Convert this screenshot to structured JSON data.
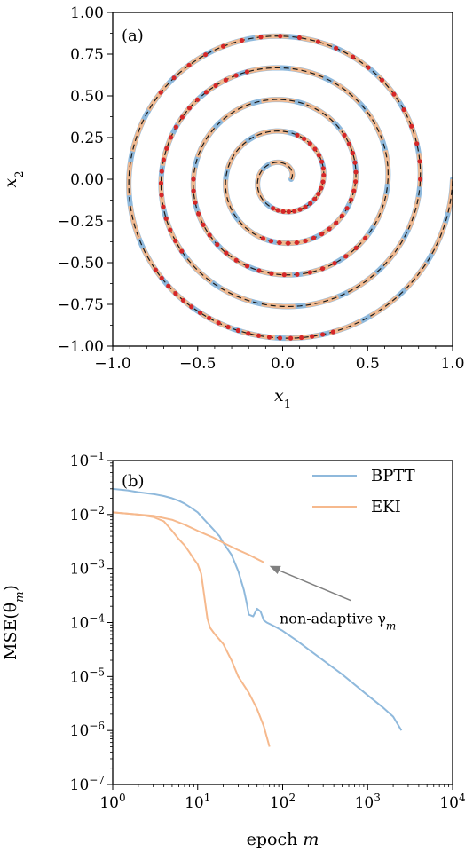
{
  "chart_data": [
    {
      "panel": "(a)",
      "type": "line",
      "xlabel": "x",
      "xlabel_sub": "1",
      "ylabel": "x",
      "ylabel_sub": "2",
      "xlim": [
        -1.0,
        1.0
      ],
      "ylim": [
        -1.0,
        1.0
      ],
      "xticks": [
        -1.0,
        -0.5,
        0.0,
        0.5,
        1.0
      ],
      "xtick_labels": [
        "−1.0",
        "−0.5",
        "0.0",
        "0.5",
        "1.0"
      ],
      "yticks": [
        1.0,
        0.75,
        0.5,
        0.25,
        0.0,
        -0.25,
        -0.5,
        -0.75,
        -1.0
      ],
      "ytick_labels": [
        "1.00",
        "0.75",
        "0.50",
        "0.25",
        "0.00",
        "−0.25",
        "−0.50",
        "−0.75",
        "−1.00"
      ],
      "grid": false,
      "spiral": {
        "turns": 5,
        "r_min": 0.05,
        "r_max": 1.0,
        "points": 700
      },
      "series": [
        {
          "style": "true trajectory",
          "color": "#8fb9dc"
        },
        {
          "style": "EKI fit",
          "color": "#f6b98d"
        },
        {
          "style": "BPTT fit (dashed)",
          "color": "#1a1a1a"
        },
        {
          "style": "observations",
          "color": "#d62728",
          "markers": 120
        }
      ],
      "colors": {
        "blue": "#8fb9dc",
        "orange": "#f6b98d",
        "black": "#1a1a1a",
        "red": "#d62728"
      }
    },
    {
      "panel": "(b)",
      "type": "line",
      "xlabel": "epoch",
      "xlabel_var": "m",
      "ylabel": "MSE(θ",
      "ylabel_sub": "m",
      "ylabel_close": ")",
      "xscale": "log",
      "yscale": "log",
      "xlim": [
        1,
        10000
      ],
      "ylim": [
        1e-07,
        0.1
      ],
      "xticks": [
        1,
        10,
        100,
        1000,
        10000
      ],
      "xtick_labels": [
        {
          "base": "10",
          "exp": "0"
        },
        {
          "base": "10",
          "exp": "1"
        },
        {
          "base": "10",
          "exp": "2"
        },
        {
          "base": "10",
          "exp": "3"
        },
        {
          "base": "10",
          "exp": "4"
        }
      ],
      "yticks": [
        0.1,
        0.01,
        0.001,
        0.0001,
        1e-05,
        1e-06,
        1e-07
      ],
      "ytick_labels": [
        {
          "base": "10",
          "exp": "−1"
        },
        {
          "base": "10",
          "exp": "−2"
        },
        {
          "base": "10",
          "exp": "−3"
        },
        {
          "base": "10",
          "exp": "−4"
        },
        {
          "base": "10",
          "exp": "−5"
        },
        {
          "base": "10",
          "exp": "−6"
        },
        {
          "base": "10",
          "exp": "−7"
        }
      ],
      "grid": false,
      "legend": {
        "placement": "top-right"
      },
      "series": [
        {
          "name": "BPTT",
          "color": "#8fb9dc",
          "x": [
            1,
            1.5,
            2,
            3,
            4,
            5,
            6,
            7,
            8,
            10,
            12,
            15,
            18,
            20,
            25,
            30,
            35,
            38,
            40,
            45,
            50,
            55,
            60,
            65,
            80,
            100,
            150,
            200,
            300,
            500,
            800,
            1000,
            1500,
            2000,
            2500
          ],
          "y": [
            0.03,
            0.028,
            0.026,
            0.024,
            0.022,
            0.02,
            0.018,
            0.016,
            0.014,
            0.011,
            0.008,
            0.0055,
            0.004,
            0.003,
            0.0018,
            0.0009,
            0.0004,
            0.00022,
            0.00014,
            0.00013,
            0.00018,
            0.00016,
            0.00011,
            0.0001,
            8.5e-05,
            7e-05,
            4.5e-05,
            3.2e-05,
            2e-05,
            1.1e-05,
            6e-06,
            4.5e-06,
            2.7e-06,
            1.8e-06,
            1e-06
          ]
        },
        {
          "name": "EKI",
          "color": "#f6b98d",
          "x": [
            1,
            2,
            3,
            4,
            5,
            6,
            7,
            8,
            9,
            10,
            11,
            12,
            13,
            14,
            16,
            20,
            25,
            30,
            40,
            50,
            60,
            70
          ],
          "y": [
            0.011,
            0.01,
            0.009,
            0.0075,
            0.005,
            0.0035,
            0.0027,
            0.002,
            0.0015,
            0.0012,
            0.0008,
            0.0003,
            0.00012,
            8e-05,
            6e-05,
            4e-05,
            2e-05,
            1e-05,
            5e-06,
            2.5e-06,
            1.2e-06,
            5e-07
          ]
        },
        {
          "name": "",
          "color": "#f6b98d",
          "x": [
            1,
            2,
            3,
            5,
            7,
            10,
            15,
            20,
            30,
            40,
            50,
            60
          ],
          "y": [
            0.011,
            0.01,
            0.0095,
            0.008,
            0.0065,
            0.005,
            0.0038,
            0.003,
            0.0022,
            0.0018,
            0.0015,
            0.0013
          ]
        }
      ],
      "annotation": {
        "text": "non-adaptive γ",
        "text_sub": "m",
        "text_xy": [
          150,
          0.00012
        ],
        "arrow_to": [
          55,
          0.0013
        ],
        "arrow_color": "#808080"
      }
    }
  ]
}
